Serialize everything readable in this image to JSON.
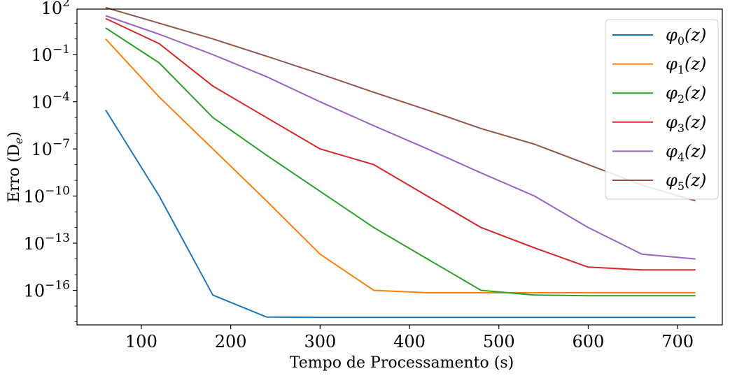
{
  "chart_data": {
    "type": "line",
    "title": "",
    "xlabel": "Tempo de Processamento (s)",
    "ylabel": "Erro (D",
    "ylabel_sub": "e",
    "ylabel_close": ")",
    "yscale": "log",
    "xlim": [
      28,
      750
    ],
    "ylim_log10": [
      -18.2,
      1.9
    ],
    "xticks": [
      100,
      200,
      300,
      400,
      500,
      600,
      700
    ],
    "xtick_labels": [
      "100",
      "200",
      "300",
      "400",
      "500",
      "600",
      "700"
    ],
    "yticks_log10": [
      2,
      -1,
      -4,
      -7,
      -10,
      -13,
      -16
    ],
    "ytick_base": "10",
    "ytick_exponents": [
      "2",
      "−1",
      "−4",
      "−7",
      "−10",
      "−13",
      "−16"
    ],
    "grid": false,
    "legend_position": "top-right",
    "x": [
      60,
      120,
      180,
      240,
      300,
      360,
      420,
      480,
      540,
      600,
      660,
      720
    ],
    "series": [
      {
        "name": "φ",
        "sub": "0",
        "arg": "(z)",
        "color": "#1f77b4",
        "values": [
          3e-05,
          1e-10,
          5e-17,
          2e-18,
          1.9e-18,
          1.9e-18,
          1.9e-18,
          1.9e-18,
          1.9e-18,
          1.9e-18,
          1.9e-18,
          1.9e-18
        ]
      },
      {
        "name": "φ",
        "sub": "1",
        "arg": "(z)",
        "color": "#ff7f0e",
        "values": [
          1.0,
          0.0002,
          1e-07,
          5e-11,
          2e-14,
          1e-16,
          7e-17,
          7e-17,
          7e-17,
          7e-17,
          7e-17,
          7e-17
        ]
      },
      {
        "name": "φ",
        "sub": "2",
        "arg": "(z)",
        "color": "#2ca02c",
        "values": [
          5.0,
          0.03,
          1e-05,
          4e-08,
          2e-10,
          1e-12,
          1e-14,
          1e-16,
          5e-17,
          4.5e-17,
          4.5e-17,
          4.5e-17
        ]
      },
      {
        "name": "φ",
        "sub": "3",
        "arg": "(z)",
        "color": "#d62728",
        "values": [
          20,
          0.5,
          0.001,
          1e-05,
          1e-07,
          1e-08,
          1e-10,
          1e-12,
          5e-14,
          3e-15,
          2e-15,
          2e-15
        ]
      },
      {
        "name": "φ",
        "sub": "4",
        "arg": "(z)",
        "color": "#9467bd",
        "values": [
          30,
          2,
          0.1,
          0.004,
          0.0001,
          3e-06,
          1e-07,
          3e-09,
          1e-10,
          1e-12,
          2e-14,
          1e-14
        ]
      },
      {
        "name": "φ",
        "sub": "5",
        "arg": "(z)",
        "color": "#8c564b",
        "values": [
          100,
          10,
          1,
          0.08,
          0.006,
          0.0004,
          3e-05,
          2e-06,
          2e-07,
          1e-08,
          5e-10,
          5e-11
        ]
      }
    ]
  }
}
